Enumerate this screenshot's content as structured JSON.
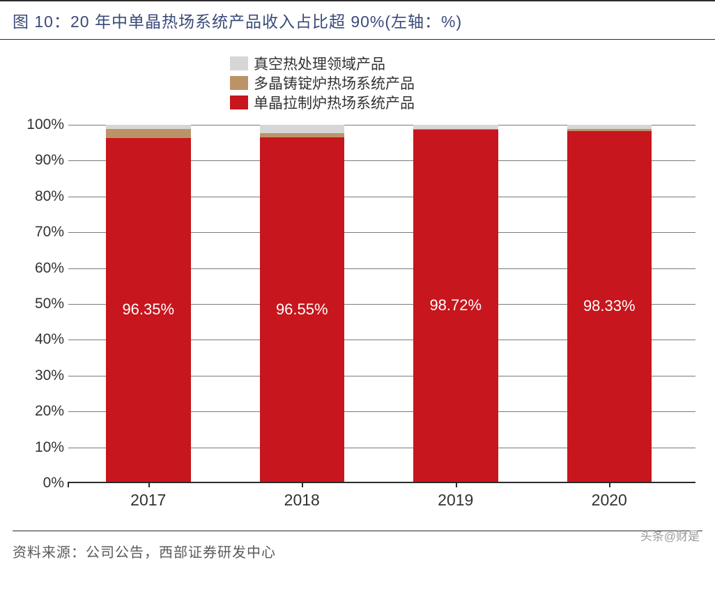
{
  "title": "图 10：20 年中单晶热场系统产品收入占比超 90%(左轴：%)",
  "legend": {
    "items": [
      {
        "label": "真空热处理领域产品",
        "color": "#d6d6d6"
      },
      {
        "label": "多晶铸锭炉热场系统产品",
        "color": "#bc9368"
      },
      {
        "label": "单晶拉制炉热场系统产品",
        "color": "#c7161d"
      }
    ]
  },
  "chart": {
    "type": "stacked-bar",
    "ylim": [
      0,
      100
    ],
    "ytick_step": 10,
    "ytick_suffix": "%",
    "grid_color": "#7a7a7a",
    "axis_color": "#2a2a2a",
    "background_color": "#ffffff",
    "bar_width_pct": 13.5,
    "bar_gap_pct": 11.0,
    "left_offset_pct": 6.0,
    "categories": [
      "2017",
      "2018",
      "2019",
      "2020"
    ],
    "series": [
      {
        "key": "single",
        "color": "#c7161d",
        "values": [
          96.35,
          96.55,
          98.72,
          98.33
        ]
      },
      {
        "key": "multi",
        "color": "#bc9368",
        "values": [
          2.5,
          1.1,
          0.18,
          0.47
        ]
      },
      {
        "key": "vacuum",
        "color": "#d6d6d6",
        "values": [
          1.15,
          2.35,
          1.1,
          1.2
        ]
      }
    ],
    "bar_value_labels": [
      "96.35%",
      "96.55%",
      "98.72%",
      "98.33%"
    ],
    "bar_label_color": "#ffffff",
    "bar_label_fontsize": 22,
    "axis_label_fontsize": 21
  },
  "source": "资料来源：公司公告，西部证券研发中心",
  "watermark": "头条@财是"
}
